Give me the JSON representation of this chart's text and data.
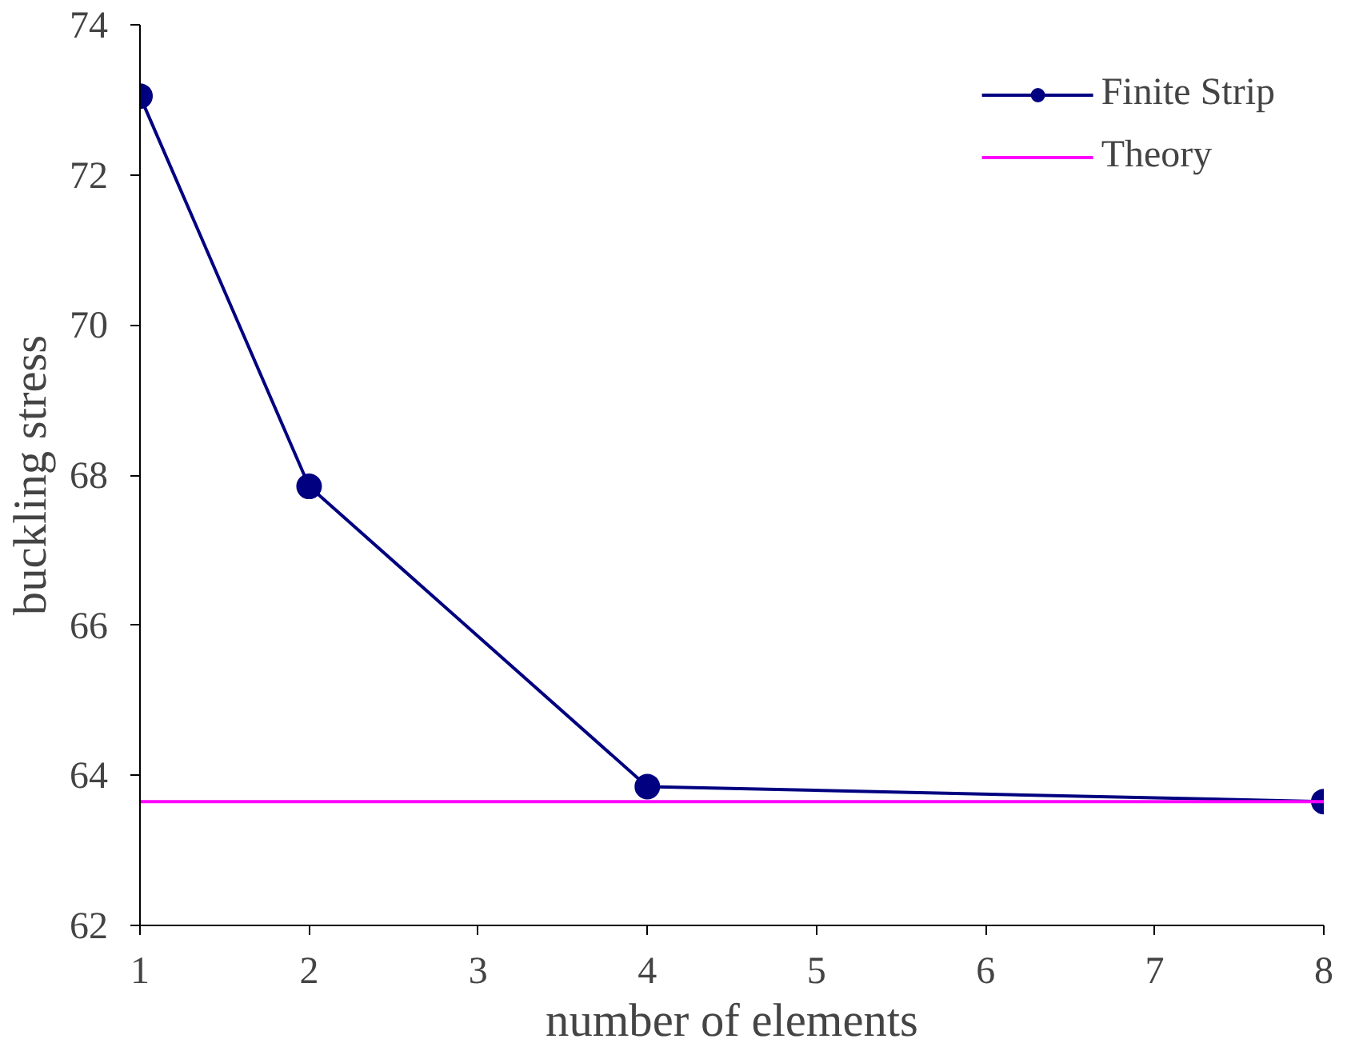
{
  "chart_data": {
    "type": "line",
    "xlabel": "number of elements",
    "ylabel": "buckling stress",
    "xlim": [
      1,
      8
    ],
    "xticks": [
      1,
      2,
      3,
      4,
      5,
      6,
      7,
      8
    ],
    "ylim": [
      62,
      74
    ],
    "yticks": [
      62,
      64,
      66,
      68,
      70,
      72,
      74
    ],
    "grid": false,
    "legend": "top right",
    "series": [
      {
        "name": "Finite Strip",
        "color": "#000080",
        "x": [
          1,
          2,
          4,
          8
        ],
        "values": [
          73.05,
          67.85,
          63.85,
          63.65
        ],
        "marker": "circle"
      },
      {
        "name": "Theory",
        "color": "#ff00ff",
        "x": [
          1,
          8
        ],
        "values": [
          63.65,
          63.65
        ],
        "marker": "none"
      }
    ]
  }
}
